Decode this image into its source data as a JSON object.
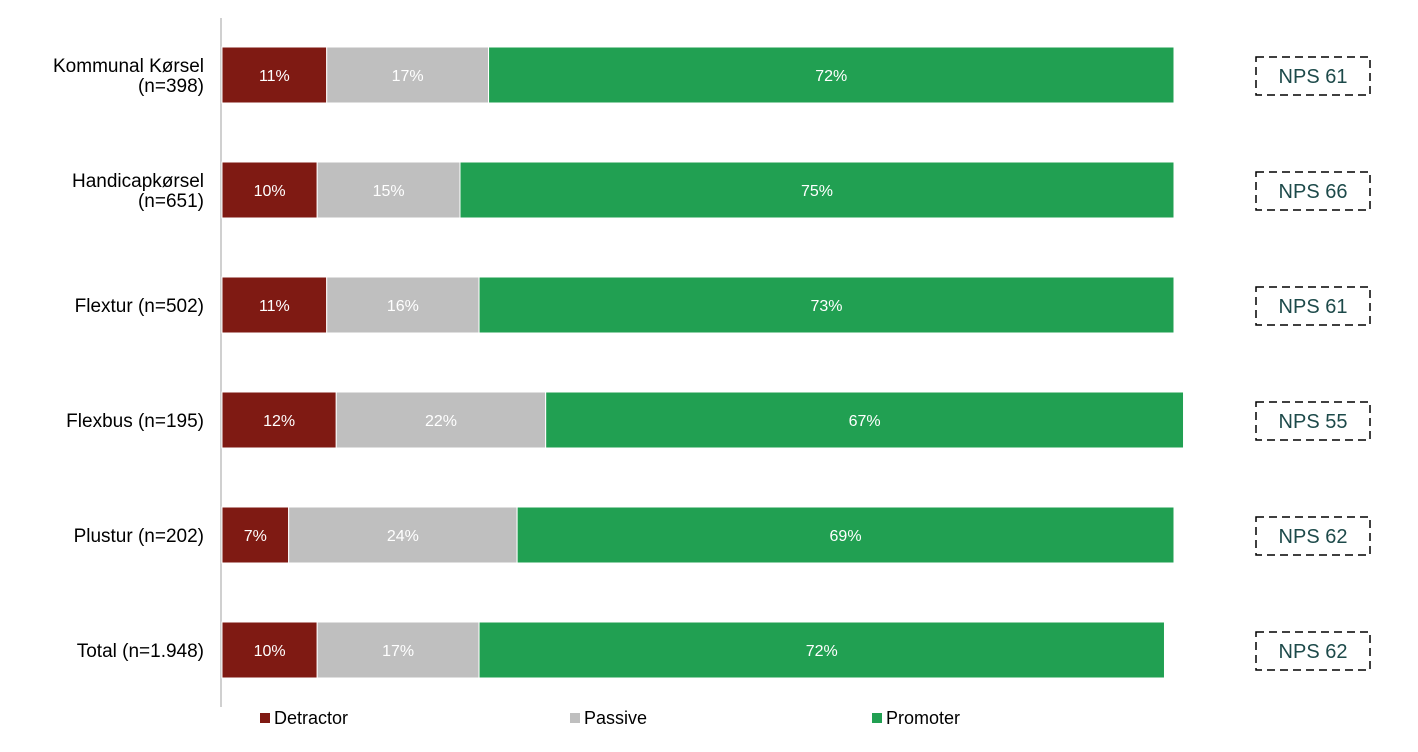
{
  "chart_data": {
    "type": "bar",
    "orientation": "horizontal",
    "stacked": true,
    "categories": [
      "Kommunal Kørsel\n(n=398)",
      "Handicapkørsel\n(n=651)",
      "Flextur (n=502)",
      "Flexbus (n=195)",
      "Plustur (n=202)",
      "Total (n=1.948)"
    ],
    "series": [
      {
        "name": "Detractor",
        "color": "#7f1a13",
        "values": [
          11,
          10,
          11,
          12,
          7,
          10
        ],
        "labels": [
          "11%",
          "10%",
          "11%",
          "12%",
          "7%",
          "10%"
        ]
      },
      {
        "name": "Passive",
        "color": "#bfbfbf",
        "values": [
          17,
          15,
          16,
          22,
          24,
          17
        ],
        "labels": [
          "17%",
          "15%",
          "16%",
          "22%",
          "24%",
          "17%"
        ]
      },
      {
        "name": "Promoter",
        "color": "#21a052",
        "values": [
          72,
          75,
          73,
          67,
          69,
          72
        ],
        "labels": [
          "72%",
          "75%",
          "73%",
          "67%",
          "69%",
          "72%"
        ]
      }
    ],
    "annotations": [
      "NPS 61",
      "NPS 66",
      "NPS 61",
      "NPS 55",
      "NPS 62",
      "NPS 62"
    ],
    "xlim": [
      0,
      100
    ],
    "grid": false,
    "legend_position": "bottom",
    "title": "",
    "xlabel": "",
    "ylabel": ""
  }
}
